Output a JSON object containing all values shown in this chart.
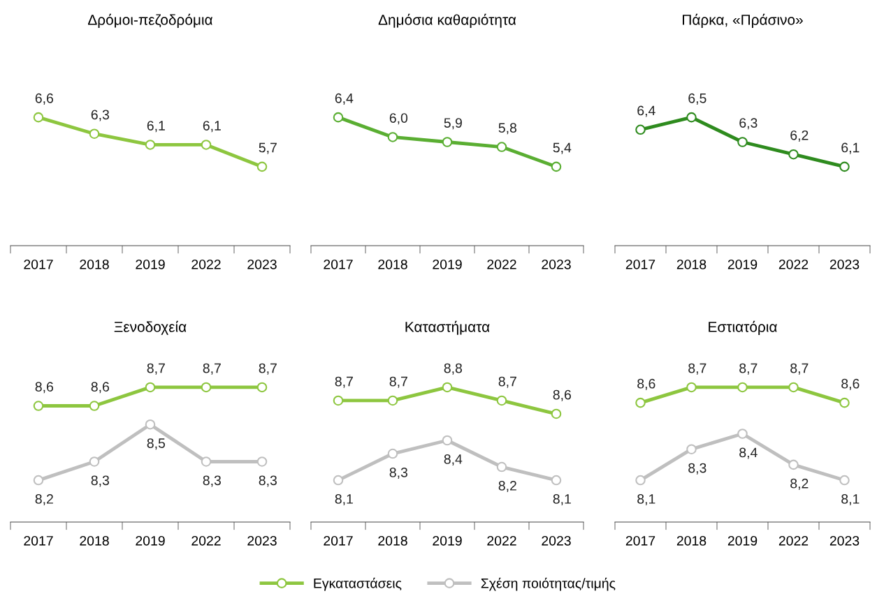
{
  "chart_data": [
    {
      "type": "line",
      "title": "Δρόμοι-πεζοδρόμια",
      "categories": [
        "2017",
        "2018",
        "2019",
        "2022",
        "2023"
      ],
      "tick_labels": "x",
      "marker": "circle",
      "legend": false,
      "series": [
        {
          "color": "#8dc63f",
          "values": [
            6.6,
            6.3,
            6.1,
            6.1,
            5.7
          ],
          "value_labels": [
            "6,6",
            "6,3",
            "6,1",
            "6,1",
            "5,7"
          ]
        }
      ]
    },
    {
      "type": "line",
      "title": "Δημόσια καθαριότητα",
      "categories": [
        "2017",
        "2018",
        "2019",
        "2022",
        "2023"
      ],
      "tick_labels": "x",
      "marker": "circle",
      "legend": false,
      "series": [
        {
          "color": "#5aae32",
          "values": [
            6.4,
            6.0,
            5.9,
            5.8,
            5.4
          ],
          "value_labels": [
            "6,4",
            "6,0",
            "5,9",
            "5,8",
            "5,4"
          ]
        }
      ]
    },
    {
      "type": "line",
      "title": "Πάρκα, «Πράσινο»",
      "categories": [
        "2017",
        "2018",
        "2019",
        "2022",
        "2023"
      ],
      "tick_labels": "x",
      "marker": "circle",
      "legend": false,
      "series": [
        {
          "color": "#2e8b1e",
          "values": [
            6.4,
            6.5,
            6.3,
            6.2,
            6.1
          ],
          "value_labels": [
            "6,4",
            "6,5",
            "6,3",
            "6,2",
            "6,1"
          ]
        }
      ]
    },
    {
      "type": "line",
      "title": "Ξενοδοχεία",
      "categories": [
        "2017",
        "2018",
        "2019",
        "2022",
        "2023"
      ],
      "tick_labels": "x",
      "marker": "circle",
      "legend": "bottom",
      "series": [
        {
          "name": "Εγκαταστάσεις",
          "color": "#8dc63f",
          "values": [
            8.6,
            8.6,
            8.7,
            8.7,
            8.7
          ],
          "value_labels": [
            "8,6",
            "8,6",
            "8,7",
            "8,7",
            "8,7"
          ]
        },
        {
          "name": "Σχέση ποιότητας/τιμής",
          "color": "#bfbfbf",
          "values": [
            8.2,
            8.3,
            8.5,
            8.3,
            8.3
          ],
          "value_labels": [
            "8,2",
            "8,3",
            "8,5",
            "8,3",
            "8,3"
          ]
        }
      ]
    },
    {
      "type": "line",
      "title": "Καταστήματα",
      "categories": [
        "2017",
        "2018",
        "2019",
        "2022",
        "2023"
      ],
      "tick_labels": "x",
      "marker": "circle",
      "legend": "bottom",
      "series": [
        {
          "name": "Εγκαταστάσεις",
          "color": "#8dc63f",
          "values": [
            8.7,
            8.7,
            8.8,
            8.7,
            8.6
          ],
          "value_labels": [
            "8,7",
            "8,7",
            "8,8",
            "8,7",
            "8,6"
          ]
        },
        {
          "name": "Σχέση ποιότητας/τιμής",
          "color": "#bfbfbf",
          "values": [
            8.1,
            8.3,
            8.4,
            8.2,
            8.1
          ],
          "value_labels": [
            "8,1",
            "8,3",
            "8,4",
            "8,2",
            "8,1"
          ]
        }
      ]
    },
    {
      "type": "line",
      "title": "Εστιατόρια",
      "categories": [
        "2017",
        "2018",
        "2019",
        "2022",
        "2023"
      ],
      "tick_labels": "x",
      "marker": "circle",
      "legend": "bottom",
      "series": [
        {
          "name": "Εγκαταστάσεις",
          "color": "#8dc63f",
          "values": [
            8.6,
            8.7,
            8.7,
            8.7,
            8.6
          ],
          "value_labels": [
            "8,6",
            "8,7",
            "8,7",
            "8,7",
            "8,6"
          ]
        },
        {
          "name": "Σχέση ποιότητας/τιμής",
          "color": "#bfbfbf",
          "values": [
            8.1,
            8.3,
            8.4,
            8.2,
            8.1
          ],
          "value_labels": [
            "8,1",
            "8,3",
            "8,4",
            "8,2",
            "8,1"
          ]
        }
      ]
    }
  ]
}
